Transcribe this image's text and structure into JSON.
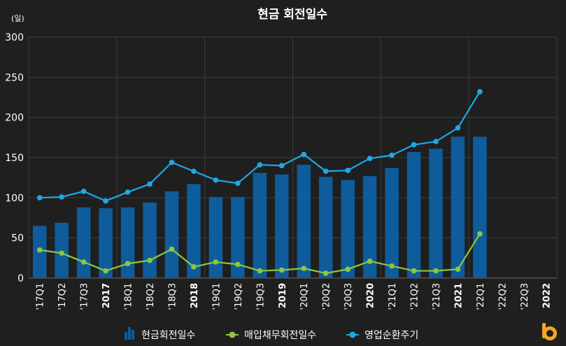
{
  "chart_data": {
    "type": "bar",
    "title": "현금 회전일수",
    "unit_label": "(일)",
    "ylim": [
      0,
      300
    ],
    "yticks": [
      0,
      50,
      100,
      150,
      200,
      250,
      300
    ],
    "grid": true,
    "legend_position": "bottom",
    "categories": [
      "'17Q1",
      "'17Q2",
      "'17Q3",
      "2017",
      "'18Q1",
      "'18Q2",
      "'18Q3",
      "2018",
      "'19Q1",
      "'19Q2",
      "'19Q3",
      "2019",
      "'20Q1",
      "'20Q2",
      "'20Q3",
      "2020",
      "'21Q1",
      "'21Q2",
      "'21Q3",
      "2021",
      "'22Q1",
      "'22Q2",
      "'22Q3",
      "2022"
    ],
    "bold_categories": [
      "2017",
      "2018",
      "2019",
      "2020",
      "2021",
      "2022"
    ],
    "series": [
      {
        "name": "현금회전일수",
        "type": "bar",
        "color": "#0e5c9c",
        "values": [
          65,
          69,
          88,
          87,
          88,
          94,
          108,
          117,
          101,
          101,
          131,
          129,
          141,
          126,
          122,
          127,
          137,
          157,
          161,
          176,
          176,
          null,
          null,
          null
        ]
      },
      {
        "name": "매입채무회전일수",
        "type": "line",
        "color": "#8dc63f",
        "values": [
          35,
          31,
          20,
          9,
          18,
          22,
          36,
          14,
          20,
          17,
          9,
          10,
          12,
          6,
          11,
          21,
          15,
          9,
          9,
          11,
          55,
          null,
          null,
          null
        ]
      },
      {
        "name": "영업순환주기",
        "type": "line",
        "color": "#1ca9e6",
        "values": [
          100,
          101,
          108,
          96,
          107,
          117,
          144,
          133,
          122,
          118,
          141,
          140,
          154,
          133,
          134,
          149,
          153,
          166,
          170,
          187,
          232,
          null,
          null,
          null
        ]
      }
    ]
  },
  "logo": {
    "name": "brand-b-logo",
    "color": "#f5a623"
  }
}
